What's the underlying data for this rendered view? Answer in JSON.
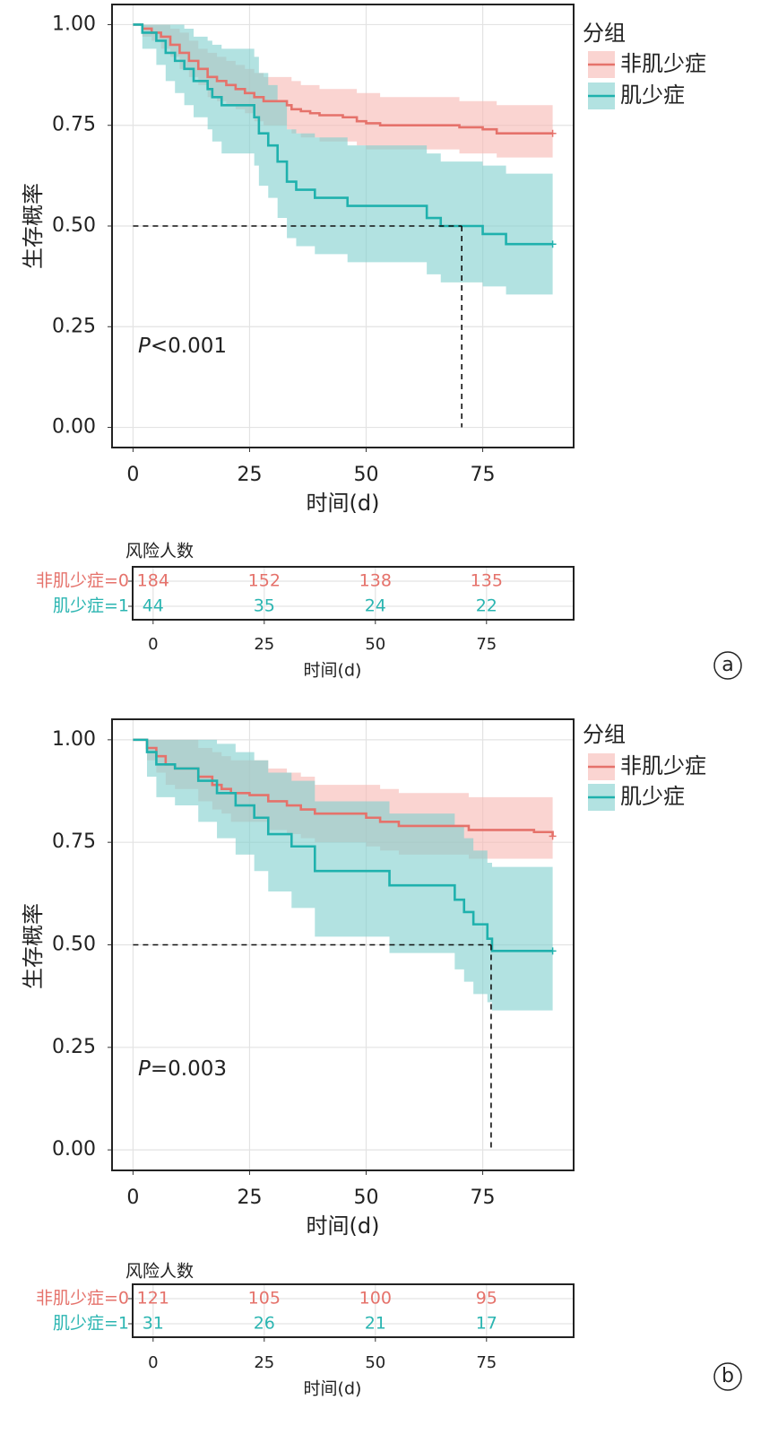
{
  "chart_data": [
    {
      "type": "km",
      "panel": "a",
      "xlabel": "时间(d)",
      "ylabel": "生存概率",
      "legend_title": "分组",
      "p_symbol": "P",
      "p_text": "<0.001",
      "xlim": [
        -4.5,
        94.5
      ],
      "ylim": [
        -0.05,
        1.05
      ],
      "xticks": [
        0,
        25,
        50,
        75
      ],
      "yticks": [
        {
          "value": 0,
          "label": "0.00"
        },
        {
          "value": 0.25,
          "label": "0.25"
        },
        {
          "value": 0.5,
          "label": "0.50"
        },
        {
          "value": 0.75,
          "label": "0.75"
        },
        {
          "value": 1,
          "label": "1.00"
        }
      ],
      "grid": true,
      "reference": {
        "x": 70.5,
        "y": 0.5
      },
      "series": [
        {
          "name": "非肌少症",
          "color": "#e5726b",
          "band_color": "#f7b7b3",
          "x": [
            0,
            2,
            4,
            6,
            8,
            10,
            12,
            14,
            16,
            18,
            20,
            22,
            24,
            26,
            28,
            33,
            34,
            36,
            38,
            40,
            45,
            48,
            50,
            53,
            70,
            75,
            78,
            90
          ],
          "values": [
            1,
            0.99,
            0.98,
            0.97,
            0.95,
            0.93,
            0.91,
            0.89,
            0.87,
            0.86,
            0.85,
            0.84,
            0.83,
            0.82,
            0.81,
            0.8,
            0.79,
            0.785,
            0.78,
            0.775,
            0.77,
            0.76,
            0.755,
            0.75,
            0.745,
            0.74,
            0.73,
            0.73
          ],
          "lower": [
            1,
            0.97,
            0.96,
            0.94,
            0.92,
            0.89,
            0.87,
            0.85,
            0.82,
            0.81,
            0.8,
            0.79,
            0.78,
            0.76,
            0.75,
            0.74,
            0.73,
            0.72,
            0.72,
            0.71,
            0.71,
            0.7,
            0.69,
            0.69,
            0.68,
            0.68,
            0.67,
            0.67
          ],
          "upper": [
            1,
            1,
            1,
            1,
            0.99,
            0.98,
            0.96,
            0.94,
            0.93,
            0.92,
            0.91,
            0.9,
            0.89,
            0.88,
            0.87,
            0.87,
            0.86,
            0.85,
            0.85,
            0.84,
            0.84,
            0.83,
            0.83,
            0.82,
            0.81,
            0.81,
            0.8,
            0.8
          ]
        },
        {
          "name": "肌少症",
          "color": "#1fb1ad",
          "band_color": "#7fcfcd",
          "x": [
            0,
            2,
            5,
            7,
            9,
            11,
            13,
            16,
            17,
            19,
            26,
            27,
            29,
            31,
            33,
            35,
            39,
            46,
            63,
            66,
            75,
            80,
            90
          ],
          "values": [
            1,
            0.98,
            0.96,
            0.93,
            0.91,
            0.89,
            0.86,
            0.84,
            0.82,
            0.8,
            0.77,
            0.73,
            0.7,
            0.66,
            0.61,
            0.59,
            0.57,
            0.55,
            0.52,
            0.5,
            0.48,
            0.455,
            0.455
          ],
          "lower": [
            1,
            0.94,
            0.9,
            0.86,
            0.83,
            0.8,
            0.77,
            0.74,
            0.71,
            0.68,
            0.65,
            0.6,
            0.57,
            0.52,
            0.47,
            0.45,
            0.43,
            0.41,
            0.38,
            0.36,
            0.35,
            0.33,
            0.33
          ],
          "upper": [
            1,
            1,
            1,
            1,
            1,
            0.99,
            0.97,
            0.96,
            0.95,
            0.94,
            0.92,
            0.88,
            0.85,
            0.81,
            0.74,
            0.73,
            0.72,
            0.7,
            0.68,
            0.66,
            0.65,
            0.63,
            0.63
          ]
        }
      ]
    },
    {
      "type": "risk_table",
      "title": "风险人数",
      "xlabel": "时间(d)",
      "xlim": [
        -4.6,
        94.6
      ],
      "xticks": [
        0,
        25,
        50,
        75
      ],
      "x": [
        0,
        25,
        50,
        75
      ],
      "rows": [
        {
          "name": "非肌少症=0",
          "color": "#e5726b",
          "values": [
            184,
            152,
            138,
            135
          ]
        },
        {
          "name": "肌少症=1",
          "color": "#2bb5b1",
          "values": [
            44,
            35,
            24,
            22
          ]
        }
      ]
    },
    {
      "type": "km",
      "panel": "b",
      "xlabel": "时间(d)",
      "ylabel": "生存概率",
      "legend_title": "分组",
      "p_symbol": "P",
      "p_text": "=0.003",
      "xlim": [
        -4.5,
        94.5
      ],
      "ylim": [
        -0.05,
        1.05
      ],
      "xticks": [
        0,
        25,
        50,
        75
      ],
      "yticks": [
        {
          "value": 0,
          "label": "0.00"
        },
        {
          "value": 0.25,
          "label": "0.25"
        },
        {
          "value": 0.5,
          "label": "0.50"
        },
        {
          "value": 0.75,
          "label": "0.75"
        },
        {
          "value": 1,
          "label": "1.00"
        }
      ],
      "grid": true,
      "reference": {
        "x": 76.8,
        "y": 0.5
      },
      "series": [
        {
          "name": "非肌少症",
          "color": "#e5726b",
          "band_color": "#f7b7b3",
          "x": [
            0,
            3,
            5,
            7,
            9,
            14,
            17,
            19,
            21,
            25,
            29,
            33,
            36,
            39,
            50,
            53,
            57,
            72,
            86,
            90
          ],
          "values": [
            1,
            0.98,
            0.96,
            0.94,
            0.93,
            0.91,
            0.89,
            0.88,
            0.87,
            0.865,
            0.85,
            0.84,
            0.83,
            0.82,
            0.81,
            0.8,
            0.79,
            0.78,
            0.775,
            0.765
          ],
          "lower": [
            1,
            0.95,
            0.92,
            0.89,
            0.88,
            0.85,
            0.83,
            0.82,
            0.8,
            0.8,
            0.78,
            0.77,
            0.76,
            0.75,
            0.74,
            0.73,
            0.72,
            0.71,
            0.71,
            0.7
          ],
          "upper": [
            1,
            1,
            1,
            1,
            1,
            0.98,
            0.97,
            0.96,
            0.95,
            0.95,
            0.93,
            0.92,
            0.91,
            0.89,
            0.89,
            0.88,
            0.87,
            0.86,
            0.86,
            0.85
          ]
        },
        {
          "name": "肌少症",
          "color": "#1fb1ad",
          "band_color": "#7fcfcd",
          "x": [
            0,
            3,
            5,
            9,
            14,
            18,
            22,
            26,
            29,
            34,
            39,
            55,
            69,
            71,
            73,
            76,
            77,
            90
          ],
          "values": [
            1,
            0.97,
            0.94,
            0.93,
            0.9,
            0.87,
            0.84,
            0.81,
            0.77,
            0.74,
            0.68,
            0.645,
            0.61,
            0.58,
            0.55,
            0.515,
            0.485,
            0.485
          ],
          "lower": [
            1,
            0.91,
            0.86,
            0.84,
            0.8,
            0.76,
            0.72,
            0.68,
            0.63,
            0.59,
            0.52,
            0.48,
            0.44,
            0.41,
            0.38,
            0.36,
            0.34,
            0.34
          ],
          "upper": [
            1,
            1,
            1,
            1,
            1,
            0.99,
            0.97,
            0.95,
            0.92,
            0.9,
            0.85,
            0.82,
            0.79,
            0.76,
            0.73,
            0.7,
            0.69,
            0.69
          ]
        }
      ]
    },
    {
      "type": "risk_table",
      "title": "风险人数",
      "xlabel": "时间(d)",
      "xlim": [
        -4.6,
        94.6
      ],
      "xticks": [
        0,
        25,
        50,
        75
      ],
      "x": [
        0,
        25,
        50,
        75
      ],
      "rows": [
        {
          "name": "非肌少症=0",
          "color": "#e5726b",
          "values": [
            121,
            105,
            100,
            95
          ]
        },
        {
          "name": "肌少症=1",
          "color": "#2bb5b1",
          "values": [
            31,
            26,
            21,
            17
          ]
        }
      ]
    }
  ]
}
